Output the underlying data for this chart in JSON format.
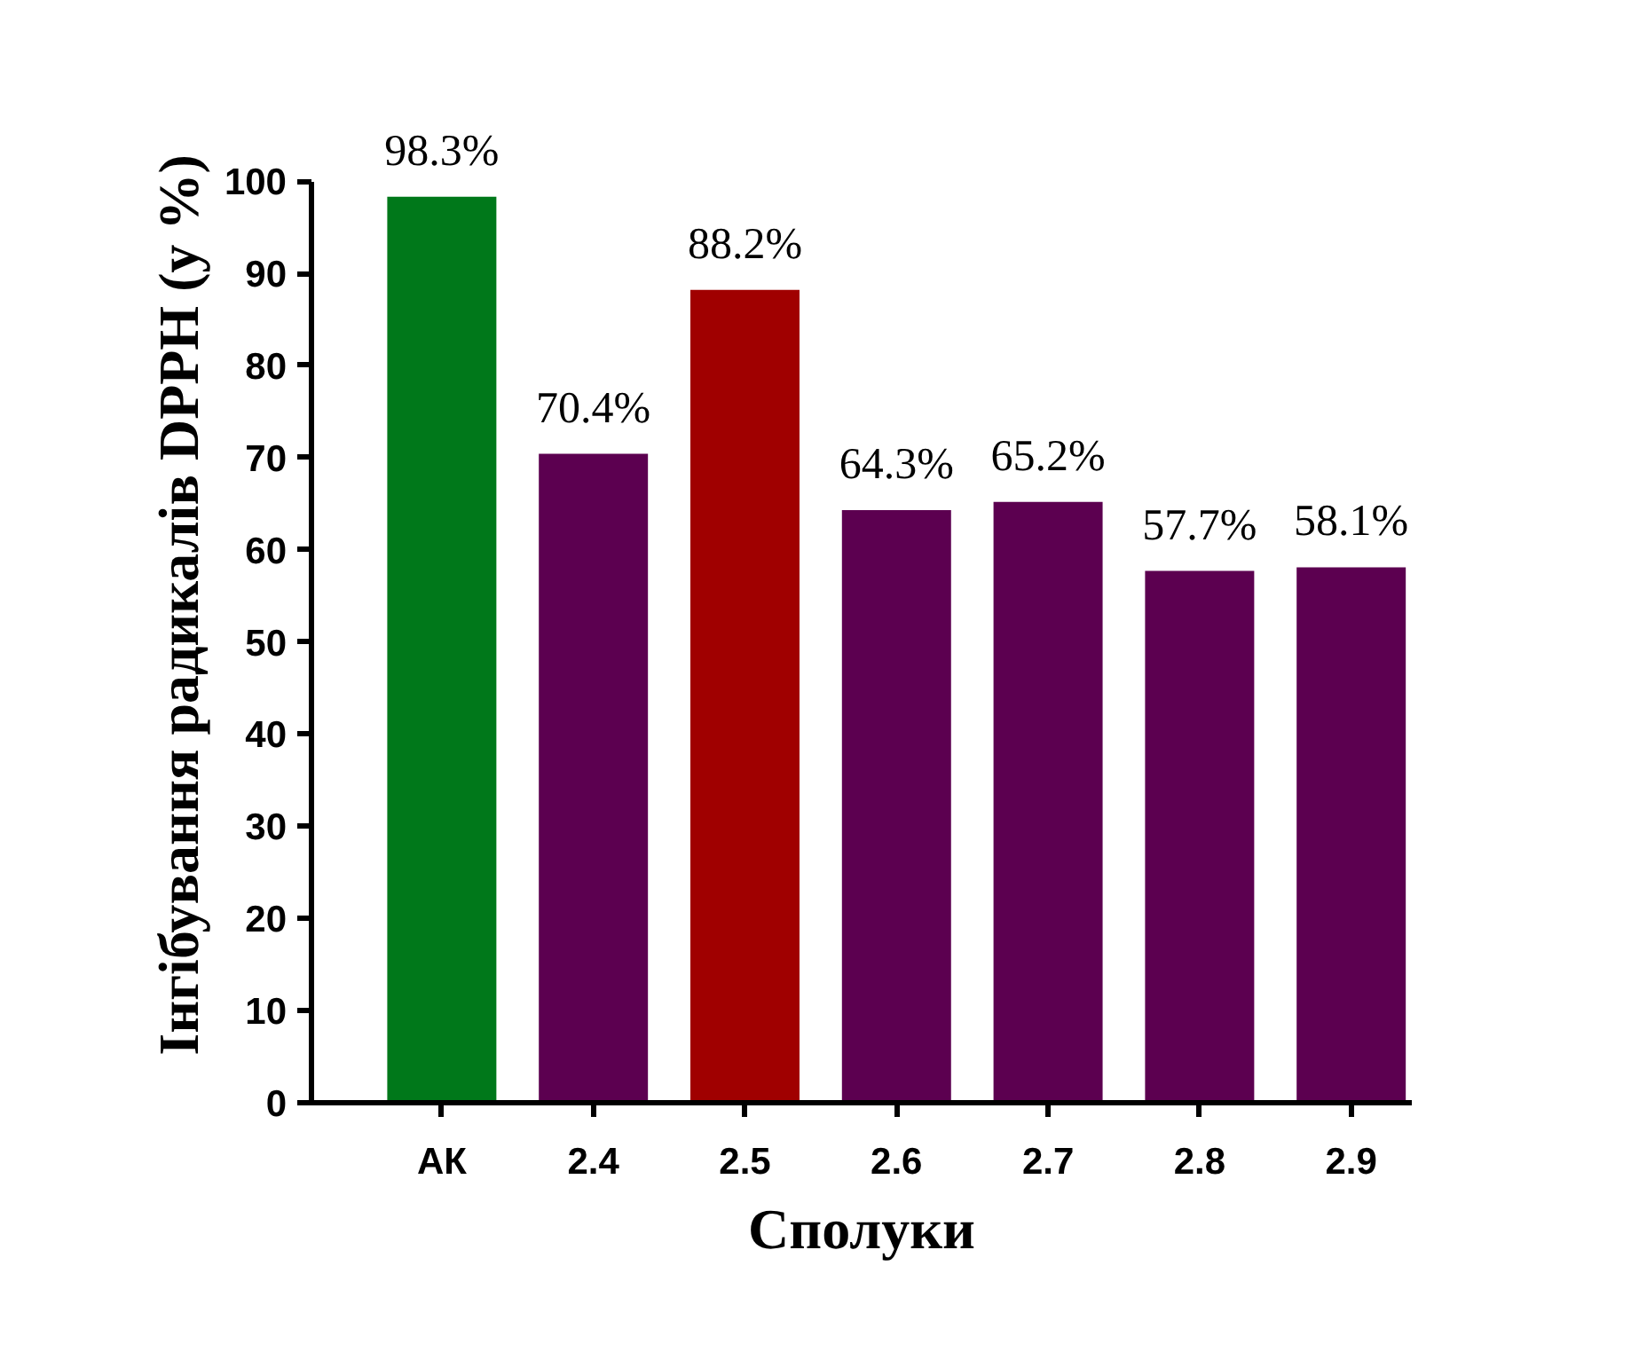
{
  "chart_data": {
    "type": "bar",
    "xlabel": "Сполуки",
    "ylabel": "Інгібування радикалів DPPH (у %)",
    "categories": [
      "АК",
      "2.4",
      "2.5",
      "2.6",
      "2.7",
      "2.8",
      "2.9"
    ],
    "values": [
      98.3,
      70.4,
      88.2,
      64.3,
      65.2,
      57.7,
      58.1
    ],
    "colors": [
      "#00781a",
      "#5c0050",
      "#a00000",
      "#5c0050",
      "#5c0050",
      "#5c0050",
      "#5c0050"
    ],
    "value_labels": [
      "98.3%",
      "70.4%",
      "88.2%",
      "64.3%",
      "65.2%",
      "57.7%",
      "58.1%"
    ],
    "ylim": [
      0,
      100
    ],
    "yticks": [
      0,
      10,
      20,
      30,
      40,
      50,
      60,
      70,
      80,
      90,
      100
    ],
    "grid": false
  }
}
